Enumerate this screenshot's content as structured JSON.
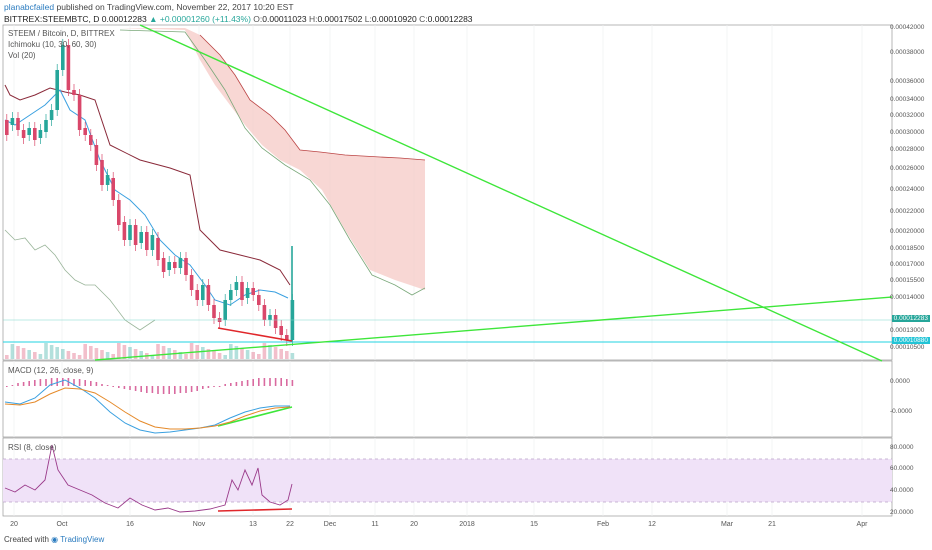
{
  "header": {
    "user": "planabcfailed",
    "published": "published on TradingView.com, November 22, 2017 10:20 EST",
    "symbol": "BITTREX:STEEMBTC, D",
    "last": "0.00012283",
    "change": "▲ +0.00001260 (+11.43%)",
    "open_label": "O:",
    "open": "0.00011023",
    "high_label": "H:",
    "high": "0.00017502",
    "low_label": "L:",
    "low": "0.00010920",
    "close_label": "C:",
    "close": "0.00012283"
  },
  "main_pane": {
    "title": "STEEM / Bitcoin, D, BITTREX",
    "ichimoku": "Ichimoku (10, 30, 60, 30)",
    "volume": "Vol (20)",
    "price_ticks": [
      "0.00042000",
      "0.00038000",
      "0.00036000",
      "0.00034000",
      "0.00032000",
      "0.00030000",
      "0.00028000",
      "0.00026000",
      "0.00024000",
      "0.00022000",
      "0.00020000",
      "0.00018500",
      "0.00017000",
      "0.00015500",
      "0.00014000",
      "0.00013000",
      "0.00010500"
    ],
    "last_price_tag": "0.00012283",
    "support_tag": "0.00010880"
  },
  "macd_pane": {
    "title": "MACD (12, 26, close, 9)",
    "ticks": [
      "0.0000",
      "-0.0000"
    ]
  },
  "rsi_pane": {
    "title": "RSI (8, close)",
    "ticks": [
      "80.0000",
      "60.0000",
      "40.0000",
      "20.0000"
    ]
  },
  "x_axis": [
    "20",
    "Oct",
    "16",
    "Nov",
    "13",
    "22",
    "Dec",
    "11",
    "20",
    "2018",
    "15",
    "Feb",
    "12",
    "Mar",
    "21",
    "Apr"
  ],
  "footer": {
    "created": "Created with",
    "brand": "TradingView"
  },
  "colors": {
    "up": "#26a69a",
    "down": "#d9476a",
    "trendline": "#3ee63a",
    "divergence": "#e0262a",
    "cloud": "#f6c9c6",
    "tenkan": "#3aa0e0",
    "kijun": "#8a2a3a",
    "support": "#22d3e0",
    "rsi_band": "#f0e2f8"
  }
}
